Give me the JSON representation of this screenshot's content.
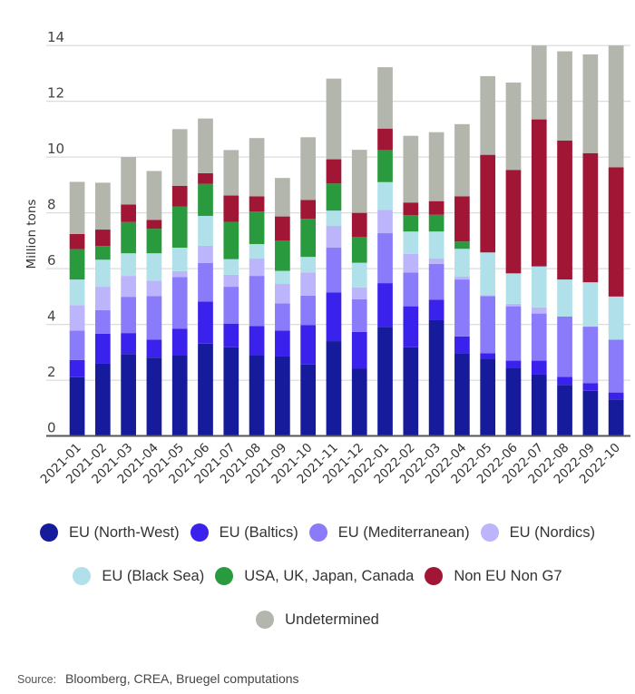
{
  "chart_data": {
    "type": "bar",
    "stacked": true,
    "title": "",
    "xlabel": "",
    "ylabel": "Million tons",
    "ylim": [
      0,
      14
    ],
    "yticks": [
      0,
      2,
      4,
      6,
      8,
      10,
      12,
      14
    ],
    "grid": true,
    "legend_position": "bottom",
    "categories": [
      "2021-01",
      "2021-02",
      "2021-03",
      "2021-04",
      "2021-05",
      "2021-06",
      "2021-07",
      "2021-08",
      "2021-09",
      "2021-10",
      "2021-11",
      "2021-12",
      "2022-01",
      "2022-02",
      "2022-03",
      "2022-04",
      "2022-05",
      "2022-06",
      "2022-07",
      "2022-08",
      "2022-09",
      "2022-10"
    ],
    "series": [
      {
        "name": "EU (North-West)",
        "color": "#161b9c",
        "values": [
          2.11,
          2.59,
          2.94,
          2.81,
          2.9,
          3.31,
          3.18,
          2.9,
          2.85,
          2.56,
          3.4,
          2.41,
          3.91,
          3.18,
          4.15,
          2.96,
          2.78,
          2.44,
          2.2,
          1.83,
          1.62,
          1.31
        ]
      },
      {
        "name": "EU (Baltics)",
        "color": "#3a22ec",
        "values": [
          0.61,
          1.08,
          0.75,
          0.64,
          0.95,
          1.51,
          0.84,
          1.04,
          0.93,
          1.42,
          1.75,
          1.32,
          1.57,
          1.47,
          0.74,
          0.61,
          0.19,
          0.26,
          0.5,
          0.29,
          0.27,
          0.25
        ]
      },
      {
        "name": "EU (Mediterranean)",
        "color": "#8a7bfa",
        "values": [
          1.06,
          0.84,
          1.3,
          1.57,
          1.85,
          1.38,
          1.33,
          1.8,
          0.97,
          1.05,
          1.6,
          1.17,
          1.79,
          1.21,
          1.28,
          2.04,
          2.05,
          1.95,
          1.69,
          2.16,
          2.03,
          1.89
        ]
      },
      {
        "name": "EU (Nordics)",
        "color": "#bdb5fb",
        "values": [
          0.91,
          0.84,
          0.75,
          0.55,
          0.21,
          0.62,
          0.43,
          0.62,
          0.7,
          0.83,
          0.78,
          0.43,
          0.84,
          0.67,
          0.19,
          0.1,
          0.03,
          0.09,
          0.22,
          0.0,
          0.0,
          0.0
        ]
      },
      {
        "name": "EU (Black Sea)",
        "color": "#b0e0ea",
        "values": [
          0.92,
          0.97,
          0.81,
          0.98,
          0.84,
          1.07,
          0.56,
          0.52,
          0.47,
          0.56,
          0.55,
          0.88,
          0.99,
          0.8,
          0.97,
          1.0,
          1.53,
          1.09,
          1.47,
          1.33,
          1.59,
          1.55
        ]
      },
      {
        "name": "USA, UK, Japan, Canada",
        "color": "#2a9a3e",
        "values": [
          1.09,
          0.49,
          1.12,
          0.88,
          1.47,
          1.15,
          1.34,
          1.17,
          1.08,
          1.37,
          0.97,
          0.92,
          1.15,
          0.59,
          0.6,
          0.26,
          0.0,
          0.0,
          0.0,
          0.0,
          0.0,
          0.0
        ]
      },
      {
        "name": "Non EU Non G7",
        "color": "#a01634",
        "values": [
          0.54,
          0.59,
          0.63,
          0.32,
          0.75,
          0.38,
          0.94,
          0.54,
          0.87,
          0.67,
          0.87,
          0.87,
          0.77,
          0.45,
          0.49,
          1.62,
          3.5,
          3.71,
          5.27,
          4.98,
          4.63,
          4.63
        ]
      },
      {
        "name": "Undetermined",
        "color": "#b3b6ad",
        "values": [
          1.87,
          1.68,
          1.7,
          1.75,
          2.03,
          1.96,
          1.63,
          2.09,
          1.38,
          2.25,
          2.89,
          2.26,
          2.2,
          2.39,
          2.47,
          2.59,
          2.82,
          3.13,
          2.65,
          3.2,
          3.54,
          4.37
        ]
      }
    ],
    "legend_rows": [
      [
        0,
        1,
        2,
        3
      ],
      [
        4,
        5,
        6
      ],
      [
        7
      ]
    ]
  },
  "source": {
    "label": "Source:",
    "text": "Bloomberg, CREA, Bruegel computations"
  }
}
